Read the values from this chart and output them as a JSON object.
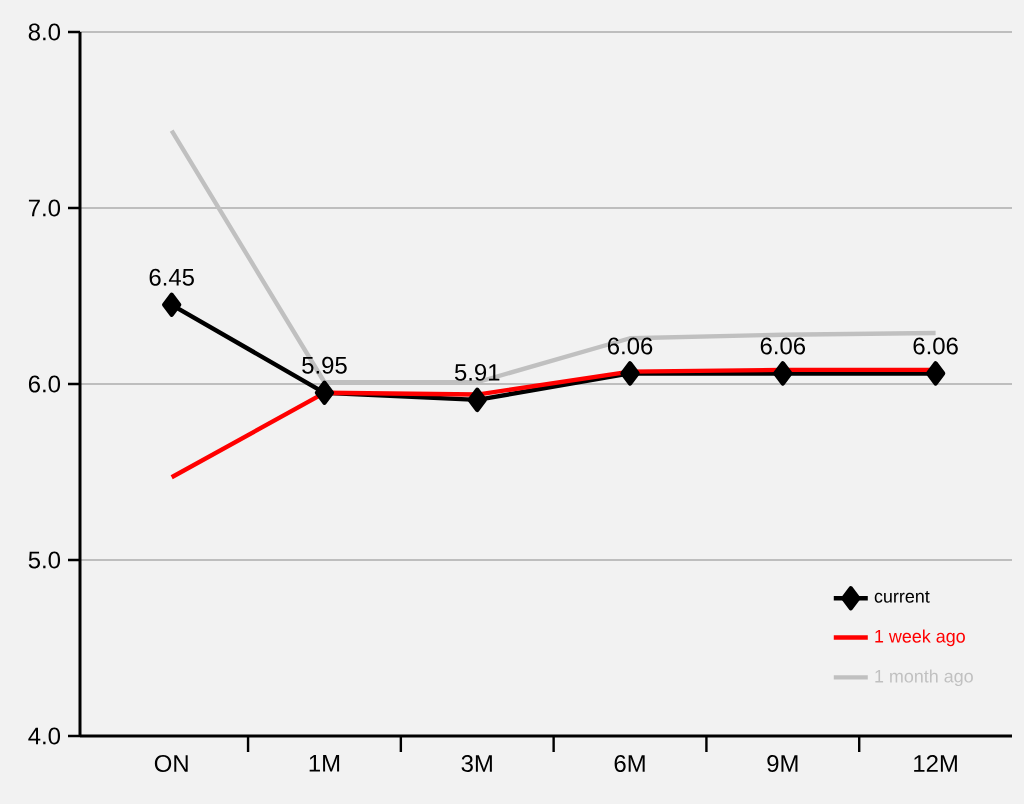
{
  "chart_data": {
    "type": "line",
    "categories": [
      "ON",
      "1M",
      "3M",
      "6M",
      "9M",
      "12M"
    ],
    "series": [
      {
        "name": "current",
        "color": "#000000",
        "marker": "diamond",
        "values": [
          6.45,
          5.95,
          5.91,
          6.06,
          6.06,
          6.06
        ],
        "value_labels": [
          "6.45",
          "5.95",
          "5.91",
          "6.06",
          "6.06",
          "6.06"
        ]
      },
      {
        "name": "1 week  ago",
        "color": "#ff0000",
        "marker": "none",
        "values": [
          5.47,
          5.95,
          5.94,
          6.07,
          6.08,
          6.08
        ]
      },
      {
        "name": "1 month  ago",
        "color": "#c0c0c0",
        "marker": "none",
        "values": [
          7.44,
          6.01,
          6.01,
          6.26,
          6.28,
          6.29
        ]
      }
    ],
    "ylim": [
      4,
      8
    ],
    "yticks": [
      {
        "value": 4,
        "label": "4.0"
      },
      {
        "value": 5,
        "label": "5.0"
      },
      {
        "value": 6,
        "label": "6.0"
      },
      {
        "value": 7,
        "label": "7.0"
      },
      {
        "value": 8,
        "label": "8.0"
      }
    ],
    "grid": "y",
    "legend": "bottom right"
  }
}
